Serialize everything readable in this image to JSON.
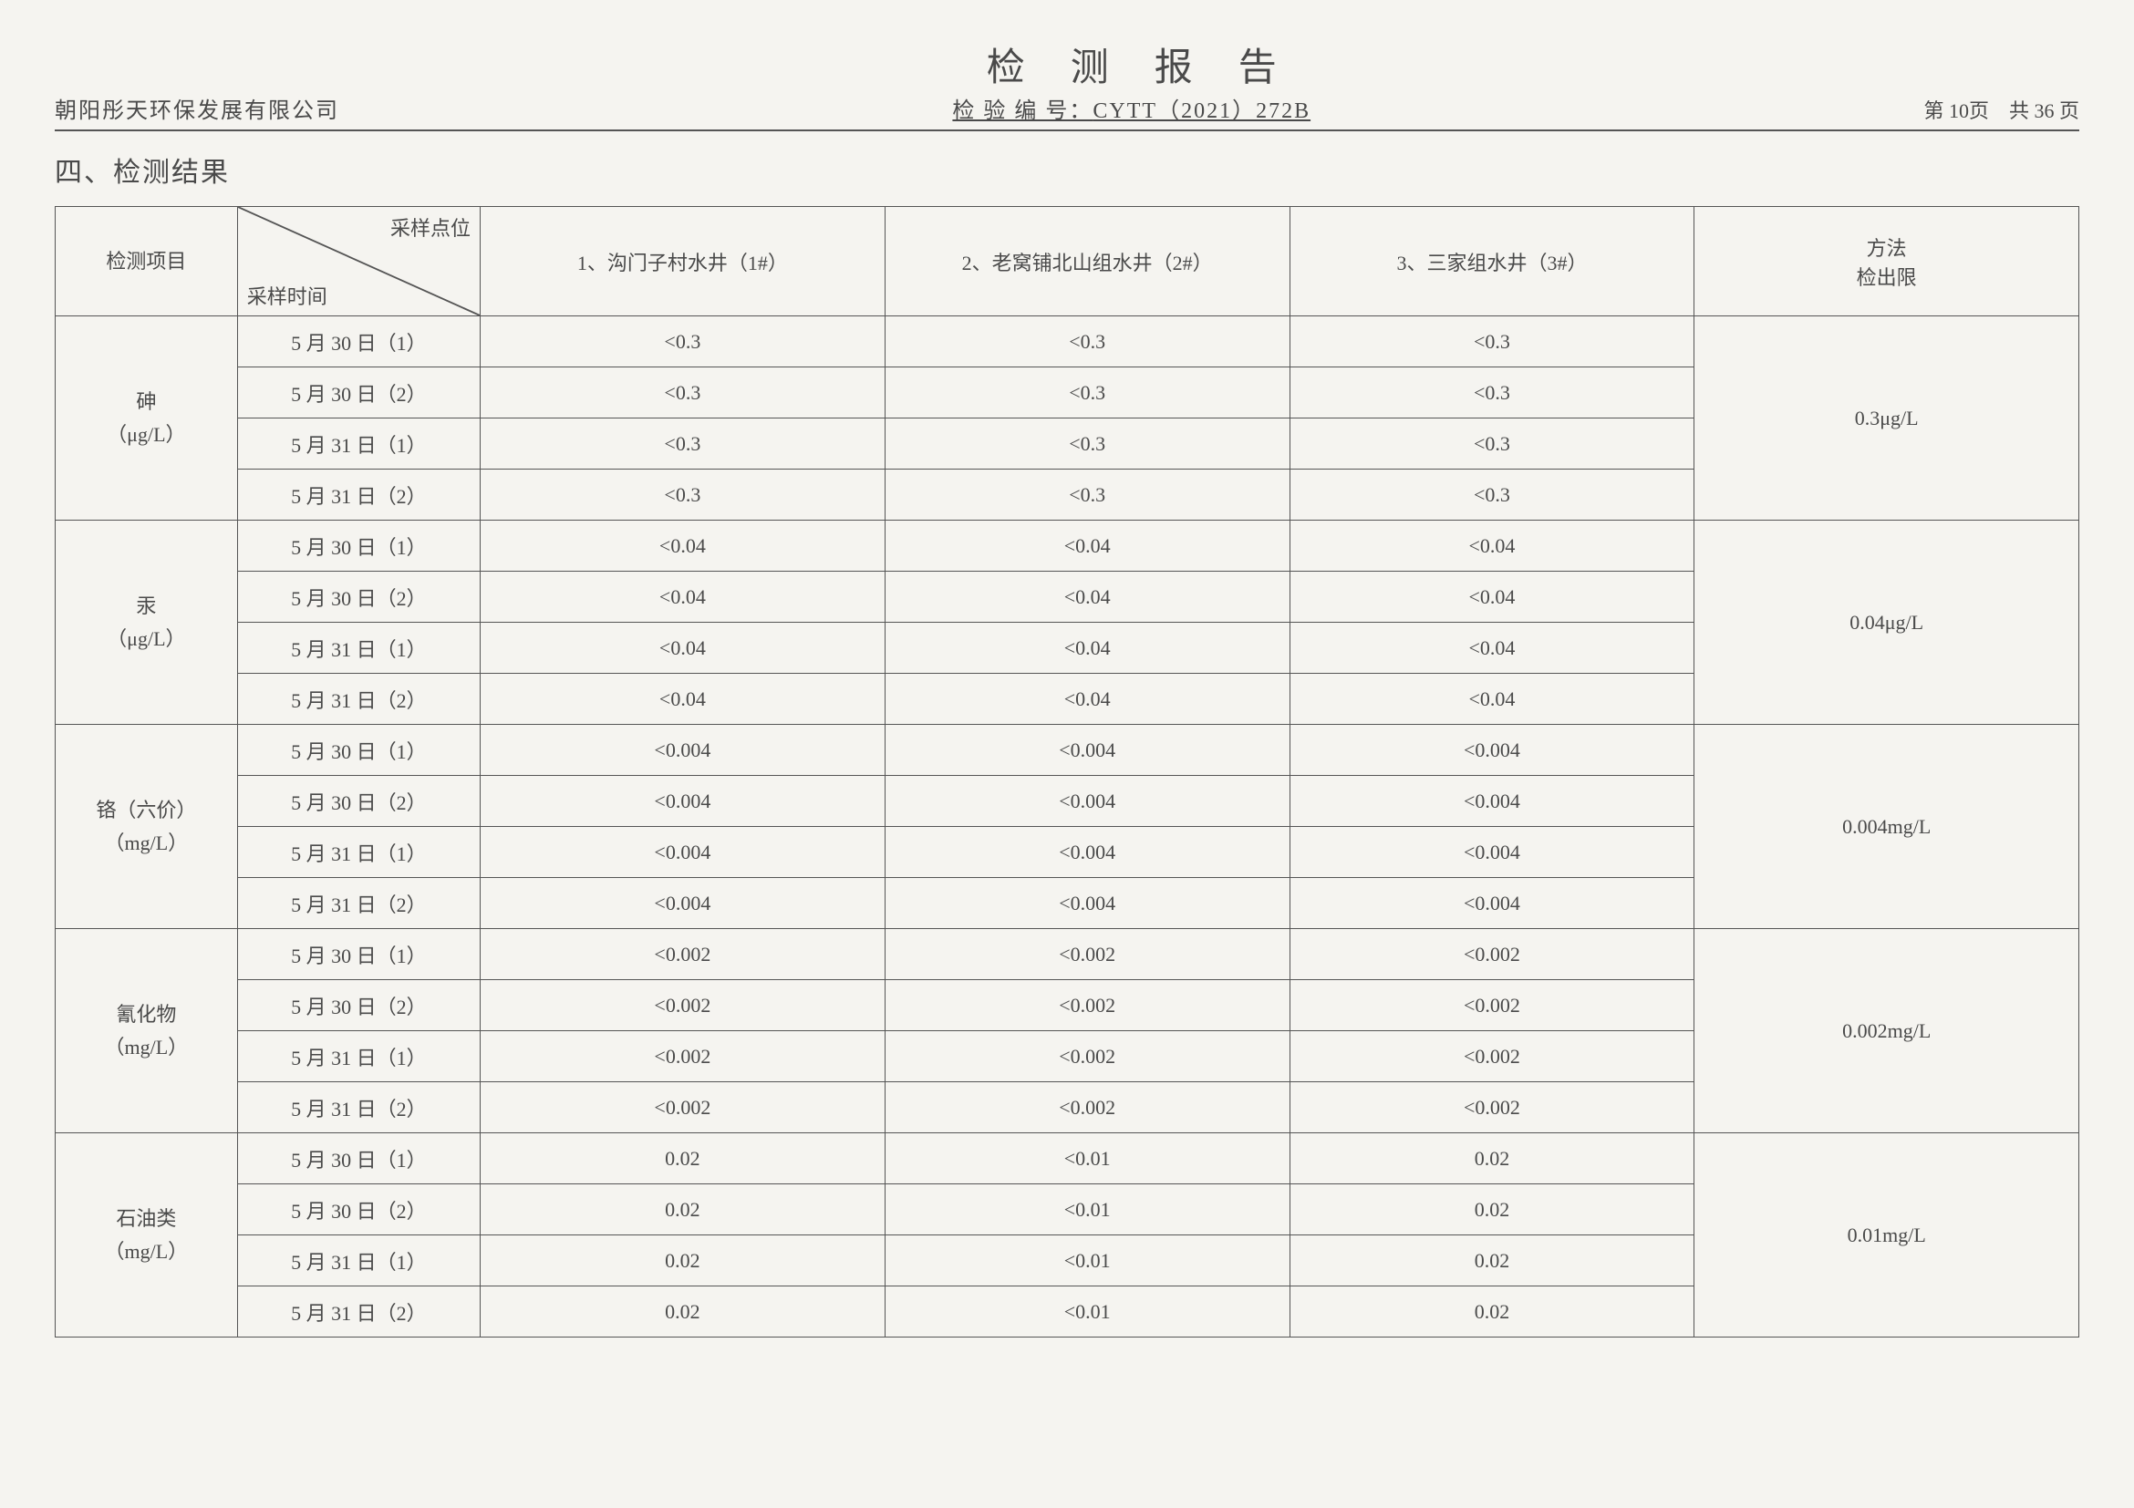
{
  "header": {
    "company": "朝阳彤天环保发展有限公司",
    "title": "检测报告",
    "report_no_label": "检 验 编 号：",
    "report_no": "CYTT（2021）272B",
    "page_info": "第 10页　共 36 页"
  },
  "section_title": "四、检测结果",
  "table": {
    "diag_top": "采样点位",
    "diag_bottom": "采样时间",
    "param_header": "检测项目",
    "limit_header_l1": "方法",
    "limit_header_l2": "检出限",
    "locations": [
      "1、沟门子村水井（1#）",
      "2、老窝铺北山组水井（2#）",
      "3、三家组水井（3#）"
    ],
    "params": [
      {
        "name": "砷",
        "unit": "（μg/L）",
        "limit": "0.3μg/L",
        "times": [
          "5 月 30 日（1）",
          "5 月 30 日（2）",
          "5 月 31 日（1）",
          "5 月 31 日（2）"
        ],
        "values": [
          [
            "<0.3",
            "<0.3",
            "<0.3"
          ],
          [
            "<0.3",
            "<0.3",
            "<0.3"
          ],
          [
            "<0.3",
            "<0.3",
            "<0.3"
          ],
          [
            "<0.3",
            "<0.3",
            "<0.3"
          ]
        ]
      },
      {
        "name": "汞",
        "unit": "（μg/L）",
        "limit": "0.04μg/L",
        "times": [
          "5 月 30 日（1）",
          "5 月 30 日（2）",
          "5 月 31 日（1）",
          "5 月 31 日（2）"
        ],
        "values": [
          [
            "<0.04",
            "<0.04",
            "<0.04"
          ],
          [
            "<0.04",
            "<0.04",
            "<0.04"
          ],
          [
            "<0.04",
            "<0.04",
            "<0.04"
          ],
          [
            "<0.04",
            "<0.04",
            "<0.04"
          ]
        ]
      },
      {
        "name": "铬（六价）",
        "unit": "（mg/L）",
        "limit": "0.004mg/L",
        "times": [
          "5 月 30 日（1）",
          "5 月 30 日（2）",
          "5 月 31 日（1）",
          "5 月 31 日（2）"
        ],
        "values": [
          [
            "<0.004",
            "<0.004",
            "<0.004"
          ],
          [
            "<0.004",
            "<0.004",
            "<0.004"
          ],
          [
            "<0.004",
            "<0.004",
            "<0.004"
          ],
          [
            "<0.004",
            "<0.004",
            "<0.004"
          ]
        ]
      },
      {
        "name": "氰化物",
        "unit": "（mg/L）",
        "limit": "0.002mg/L",
        "times": [
          "5 月 30 日（1）",
          "5 月 30 日（2）",
          "5 月 31 日（1）",
          "5 月 31 日（2）"
        ],
        "values": [
          [
            "<0.002",
            "<0.002",
            "<0.002"
          ],
          [
            "<0.002",
            "<0.002",
            "<0.002"
          ],
          [
            "<0.002",
            "<0.002",
            "<0.002"
          ],
          [
            "<0.002",
            "<0.002",
            "<0.002"
          ]
        ]
      },
      {
        "name": "石油类",
        "unit": "（mg/L）",
        "limit": "0.01mg/L",
        "times": [
          "5 月 30 日（1）",
          "5 月 30 日（2）",
          "5 月 31 日（1）",
          "5 月 31 日（2）"
        ],
        "values": [
          [
            "0.02",
            "<0.01",
            "0.02"
          ],
          [
            "0.02",
            "<0.01",
            "0.02"
          ],
          [
            "0.02",
            "<0.01",
            "0.02"
          ],
          [
            "0.02",
            "<0.01",
            "0.02"
          ]
        ]
      }
    ]
  }
}
